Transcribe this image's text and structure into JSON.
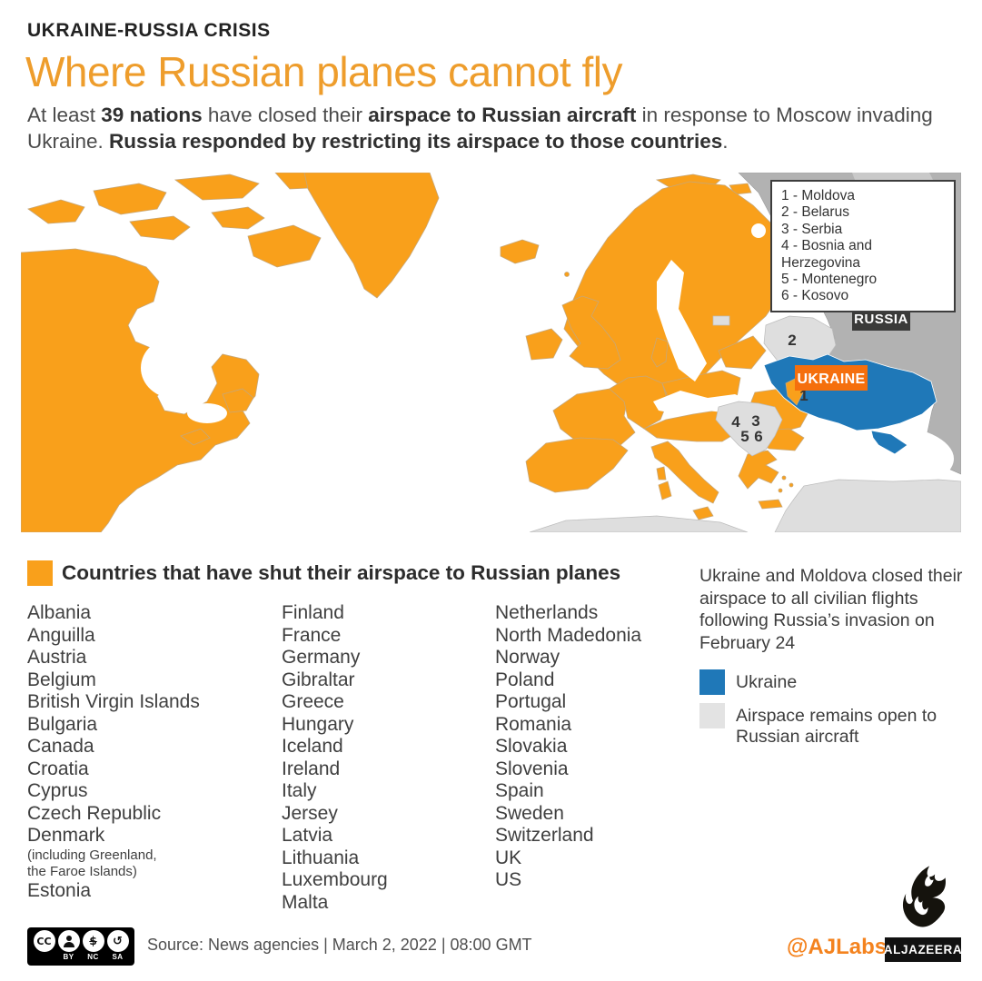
{
  "colors": {
    "map_orange": "#F9A01B",
    "title_orange": "#EE9D2C",
    "ukraine_blue": "#1F78B8",
    "ukraine_label_orange": "#F56F0D",
    "russia_gray": "#B2B2B2",
    "open_airspace_gray": "#DEDEDE",
    "russia_label_bg": "#3A3A39",
    "ajlabs_orange": "#F4831F"
  },
  "header": {
    "kicker": "UKRAINE-RUSSIA CRISIS",
    "title": "Where Russian planes cannot fly",
    "intro": [
      {
        "text": "At least ",
        "bold": false
      },
      {
        "text": "39 nations",
        "bold": true
      },
      {
        "text": " have closed their ",
        "bold": false
      },
      {
        "text": "airspace to Russian aircraft",
        "bold": true
      },
      {
        "text": " in response to Moscow invading Ukraine. ",
        "bold": false
      },
      {
        "text": "Russia responded by restricting its airspace to those countries",
        "bold": true
      },
      {
        "text": ".",
        "bold": false
      }
    ]
  },
  "map": {
    "legend_lines": [
      "1 - Moldova",
      "2 - Belarus",
      "3 - Serbia",
      "4 - Bosnia and Herzegovina",
      "5 - Montenegro",
      "6 - Kosovo"
    ],
    "russia_label": "RUSSIA",
    "ukraine_label": "UKRAINE",
    "markers": {
      "m1": "1",
      "m2": "2",
      "m3": "3",
      "m4": "4",
      "m5": "5",
      "m6": "6"
    }
  },
  "closed_section": {
    "heading": "Countries that have shut their airspace to Russian planes",
    "col1": [
      "Albania",
      "Anguilla",
      "Austria",
      "Belgium",
      "British Virgin Islands",
      "Bulgaria",
      "Canada",
      "Croatia",
      "Cyprus",
      "Czech Republic",
      "Denmark",
      {
        "label": "(including Greenland,",
        "cls": "small"
      },
      {
        "label": "the Faroe Islands)",
        "cls": "small"
      },
      "Estonia"
    ],
    "col2": [
      "Finland",
      "France",
      "Germany",
      "Gibraltar",
      "Greece",
      "Hungary",
      "Iceland",
      "Ireland",
      "Italy",
      "Jersey",
      "Latvia",
      "Lithuania",
      "Luxembourg",
      "Malta"
    ],
    "col3": [
      "Netherlands",
      "North Madedonia",
      "Norway",
      "Poland",
      "Portugal",
      "Romania",
      "Slovakia",
      "Slovenia",
      "Spain",
      "Sweden",
      "Switzerland",
      "UK",
      "US"
    ]
  },
  "side_note": "Ukraine and Moldova closed their airspace to all civilian flights following Russia’s invasion on February 24",
  "map_key": {
    "ukraine": "Ukraine",
    "open": "Airspace remains open to Russian aircraft"
  },
  "footer": {
    "cc_icons": [
      "cc-icon",
      "attribution-person-icon",
      "non-commercial-dollar-icon",
      "share-alike-arrow-icon"
    ],
    "cc_labels": {
      "by": "BY",
      "nc": "NC",
      "sa": "SA"
    },
    "cc_text": "CC",
    "nc_glyph": "$",
    "sa_glyph": "↺",
    "source": "Source: News agencies | March 2, 2022 | 08:00 GMT",
    "ajlabs": "@AJLabs",
    "brand": "ALJAZEERA"
  }
}
